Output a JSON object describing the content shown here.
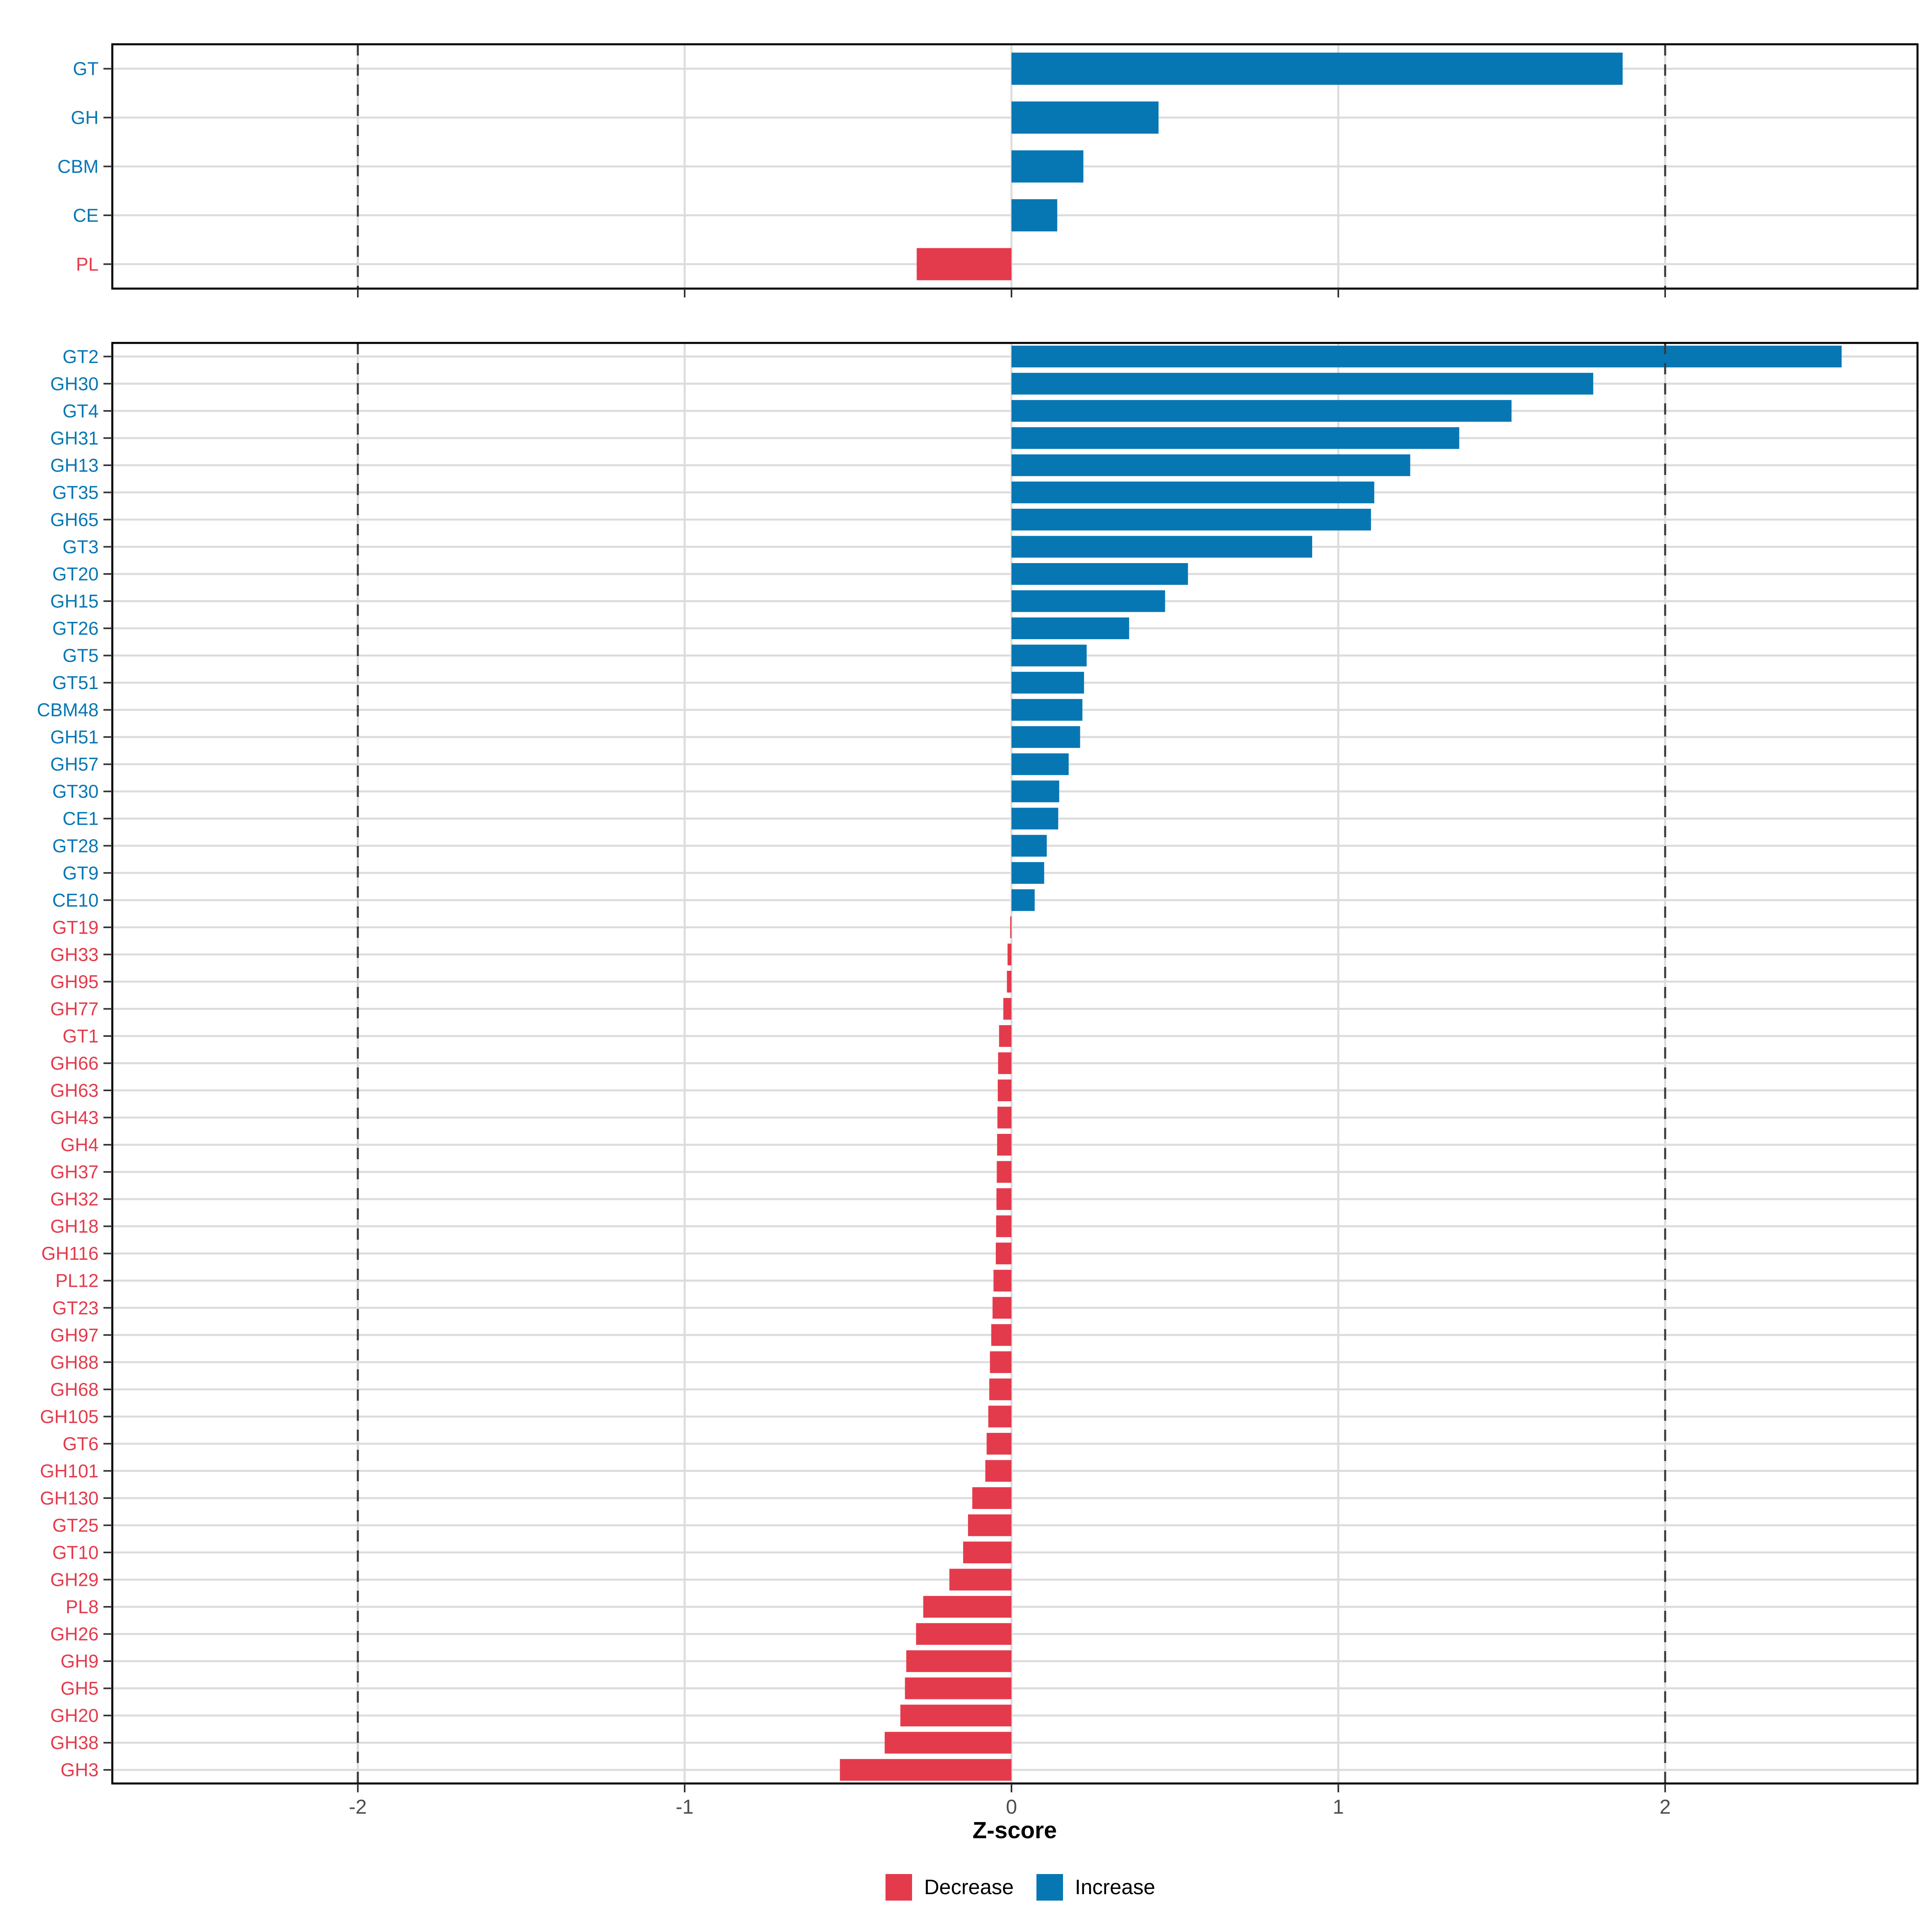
{
  "chart_data": {
    "type": "bar",
    "orientation": "horizontal",
    "title": "",
    "xlabel": "Z-score",
    "xticks": [
      -2,
      -1,
      0,
      1,
      2
    ],
    "xlim": [
      -2.75,
      2.77
    ],
    "reference_lines": [
      -2,
      2
    ],
    "grid": "major-vertical-and-category-horizontal",
    "legend_position": "bottom",
    "legend": [
      {
        "label": "Decrease",
        "color": "#E43B4C"
      },
      {
        "label": "Increase",
        "color": "#0777B4"
      }
    ],
    "colors": {
      "increase": "#0777B4",
      "decrease": "#E43B4C",
      "gridline": "#DCDCDC",
      "panel_border": "#000000",
      "tick": "#333333",
      "tick_label": "#4D4D4D",
      "axis_title": "#000000",
      "background": "#FFFFFF",
      "reference_line": "#3A3A3A"
    },
    "panels": [
      {
        "name": "cazyme-class-summary",
        "categories": [
          "GT",
          "GH",
          "CBM",
          "CE",
          "PL"
        ],
        "values": [
          1.87,
          0.45,
          0.22,
          0.14,
          -0.29
        ]
      },
      {
        "name": "cazyme-family-detail",
        "categories": [
          "GT2",
          "GH30",
          "GT4",
          "GH31",
          "GH13",
          "GT35",
          "GH65",
          "GT3",
          "GT20",
          "GH15",
          "GT26",
          "GT5",
          "GT51",
          "CBM48",
          "GH51",
          "GH57",
          "GT30",
          "CE1",
          "GT28",
          "GT9",
          "CE10",
          "GT19",
          "GH33",
          "GH95",
          "GH77",
          "GT1",
          "GH66",
          "GH63",
          "GH43",
          "GH4",
          "GH37",
          "GH32",
          "GH18",
          "GH116",
          "PL12",
          "GT23",
          "GH97",
          "GH88",
          "GH68",
          "GH105",
          "GT6",
          "GH101",
          "GH130",
          "GT25",
          "GT10",
          "GH29",
          "PL8",
          "GH26",
          "GH9",
          "GH5",
          "GH20",
          "GH38",
          "GH3"
        ],
        "values": [
          2.54,
          1.78,
          1.53,
          1.37,
          1.22,
          1.11,
          1.1,
          0.92,
          0.54,
          0.47,
          0.36,
          0.23,
          0.222,
          0.217,
          0.21,
          0.175,
          0.146,
          0.143,
          0.108,
          0.1,
          0.071,
          -0.004,
          -0.012,
          -0.014,
          -0.025,
          -0.038,
          -0.041,
          -0.042,
          -0.043,
          -0.044,
          -0.045,
          -0.046,
          -0.047,
          -0.048,
          -0.055,
          -0.058,
          -0.062,
          -0.066,
          -0.068,
          -0.071,
          -0.076,
          -0.08,
          -0.12,
          -0.133,
          -0.148,
          -0.19,
          -0.27,
          -0.292,
          -0.322,
          -0.326,
          -0.34,
          -0.388,
          -0.525
        ]
      }
    ]
  }
}
